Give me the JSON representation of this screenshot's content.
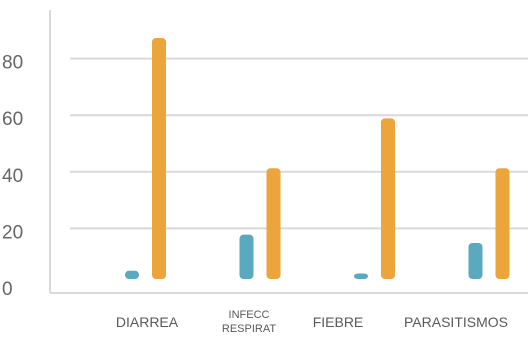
{
  "chart_data": {
    "type": "bar",
    "categories": [
      "DIARREA",
      "INFECC RESPIRAT",
      "FIEBRE",
      "PARASITISMOS"
    ],
    "category_lines": [
      [
        "DIARREA"
      ],
      [
        "INFECC",
        "RESPIRAT"
      ],
      [
        "FIEBRE"
      ],
      [
        "PARASITISMOS"
      ]
    ],
    "series": [
      {
        "values": [
          3,
          16,
          2,
          13
        ],
        "color": "#5AA9BE"
      },
      {
        "values": [
          87,
          40,
          58,
          40
        ],
        "color": "#EBA53A"
      }
    ],
    "title": "",
    "xlabel": "",
    "ylabel": "",
    "ylim": [
      0,
      100
    ],
    "yticks": [
      0,
      20,
      40,
      60,
      80
    ],
    "grid": true,
    "legend": "none"
  }
}
